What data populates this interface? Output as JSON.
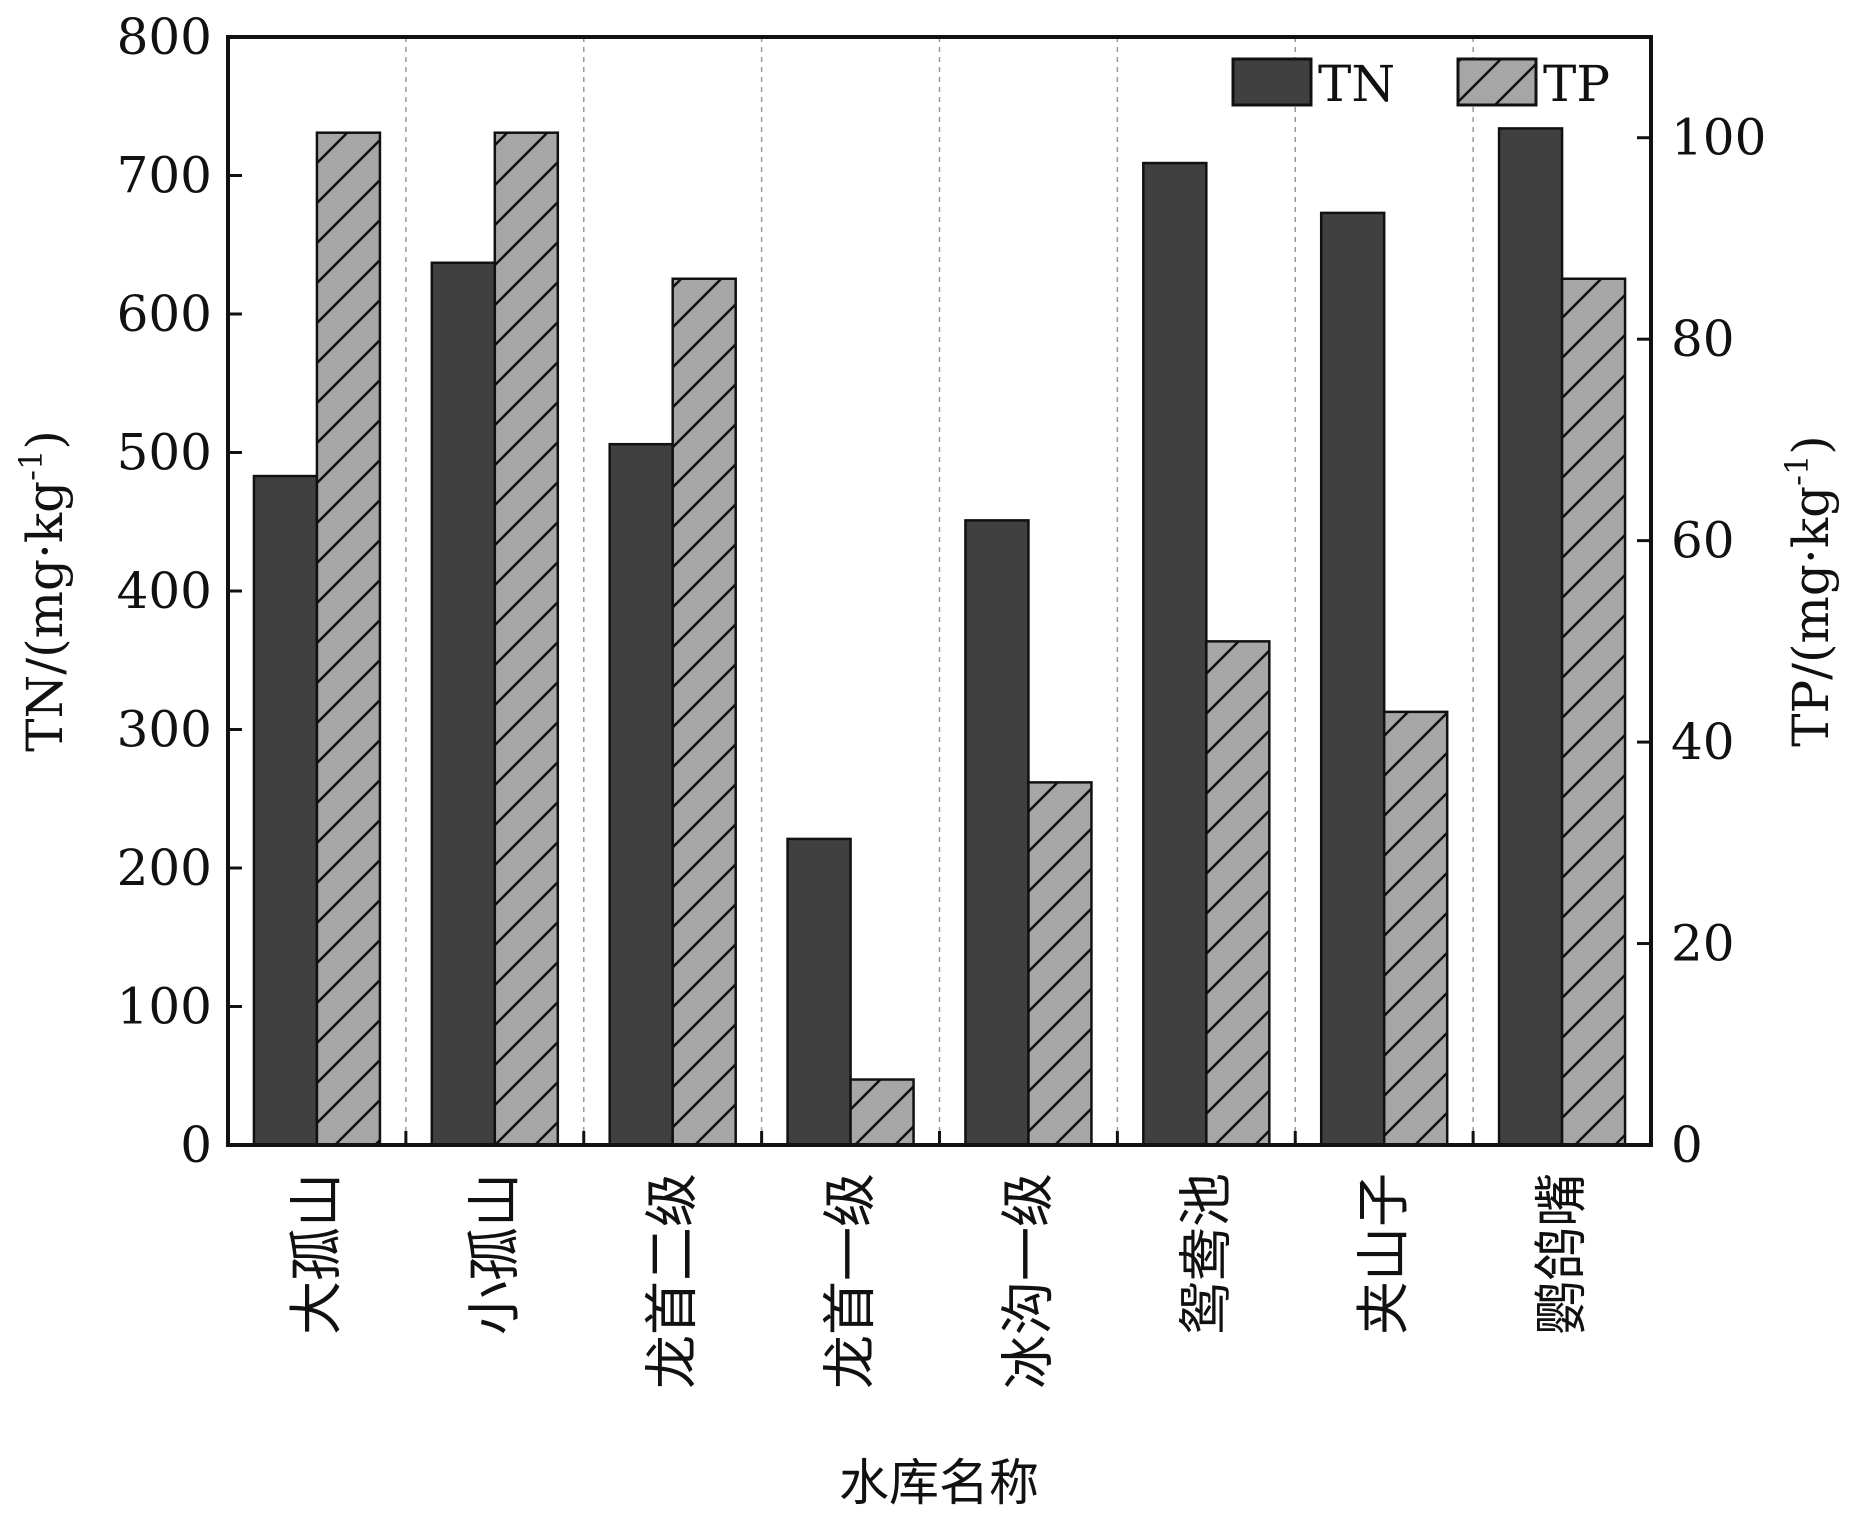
{
  "chart_data": {
    "type": "bar",
    "categories": [
      "大孤山",
      "小孤山",
      "龙首二级",
      "龙首一级",
      "冰沟一级",
      "鸳鸯池",
      "夹山子",
      "鹦鸽嘴"
    ],
    "series": [
      {
        "name": "TN",
        "axis": "left",
        "color": "#404040",
        "pattern": "solid",
        "values": [
          483,
          637,
          506,
          221,
          451,
          709,
          673,
          734
        ]
      },
      {
        "name": "TP",
        "axis": "right",
        "color": "#a6a6a6",
        "pattern": "diagonal-hatch",
        "values": [
          100.5,
          100.5,
          86,
          6.5,
          36,
          50,
          43,
          86
        ]
      }
    ],
    "xlabel": "水库名称",
    "ylabel": "TN/(mg·kg",
    "ylabel_sup": "-1",
    "ylabel_close": ")",
    "y2label": "TP/(mg·kg",
    "y2label_sup": "-1",
    "y2label_close": ")",
    "ylim": [
      0,
      800
    ],
    "yticks": [
      0,
      100,
      200,
      300,
      400,
      500,
      600,
      700,
      800
    ],
    "y2lim": [
      0,
      110
    ],
    "y2ticks": [
      0,
      20,
      40,
      60,
      80,
      100
    ],
    "grid": "vertical-dashed-between-categories",
    "legend_position": "top-right"
  }
}
